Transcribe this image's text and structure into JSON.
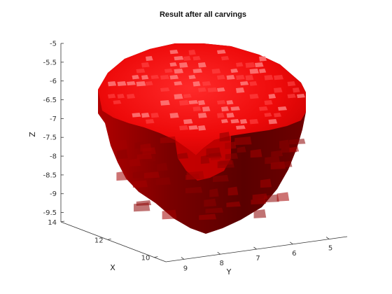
{
  "chart_data": {
    "type": "3d-surface",
    "title": "Result after all carvings",
    "xlabel": "X",
    "ylabel": "Y",
    "zlabel": "Z",
    "z_ticks": [
      "-5",
      "-5.5",
      "-6",
      "-6.5",
      "-7",
      "-7.5",
      "-8",
      "-8.5",
      "-9",
      "-9.5"
    ],
    "x_ticks": [
      "14",
      "12",
      "10"
    ],
    "y_ticks": [
      "9",
      "8",
      "7",
      "6",
      "5"
    ],
    "zlim": [
      -9.75,
      -5
    ],
    "xlim": [
      9.5,
      14
    ],
    "ylim": [
      4.5,
      9.5
    ],
    "surface_color": "#e00000",
    "shadow_color": "#5a0000"
  }
}
